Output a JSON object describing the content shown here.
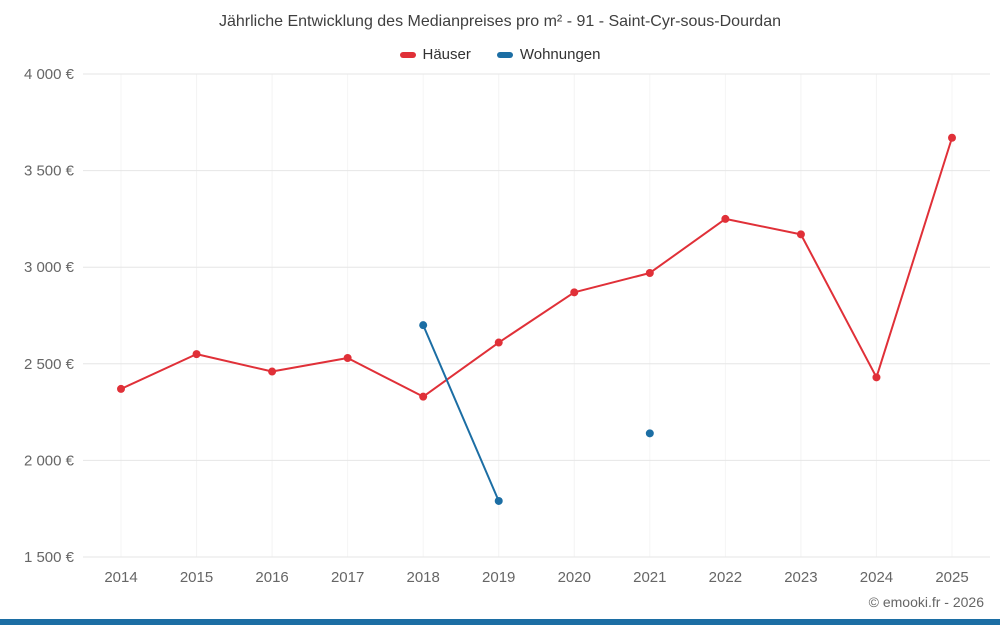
{
  "title": "Jährliche Entwicklung des Medianpreises pro m² - 91 - Saint-Cyr-sous-Dourdan",
  "legend": {
    "position": "top",
    "items": [
      {
        "label": "Häuser",
        "color": "#e03038"
      },
      {
        "label": "Wohnungen",
        "color": "#1c6ea4"
      }
    ]
  },
  "footer": {
    "copyright": "© emooki.fr - 2026",
    "bar_color": "#1c6ea4"
  },
  "chart_data": {
    "type": "line",
    "title": "Jährliche Entwicklung des Medianpreises pro m² - 91 - Saint-Cyr-sous-Dourdan",
    "xlabel": "",
    "ylabel": "",
    "x": [
      2014,
      2015,
      2016,
      2017,
      2018,
      2019,
      2020,
      2021,
      2022,
      2023,
      2024,
      2025
    ],
    "series": [
      {
        "name": "Häuser",
        "color": "#e03038",
        "values": [
          2370,
          2550,
          2460,
          2530,
          2330,
          2610,
          2870,
          2970,
          3250,
          3170,
          2430,
          3670
        ]
      },
      {
        "name": "Wohnungen",
        "color": "#1c6ea4",
        "values": [
          null,
          null,
          null,
          null,
          2700,
          1790,
          null,
          2140,
          null,
          null,
          null,
          null
        ]
      }
    ],
    "ylim": [
      1500,
      4000
    ],
    "yticks": [
      1500,
      2000,
      2500,
      3000,
      3500,
      4000
    ],
    "ytick_labels": [
      "1 500 €",
      "2 000 €",
      "2 500 €",
      "3 000 €",
      "3 500 €",
      "4 000 €"
    ],
    "grid": true,
    "grid_color": "#e6e6e6",
    "minor_grid_color": "#f4f4f4",
    "axis_text_color": "#666666",
    "legend_position": "top"
  }
}
